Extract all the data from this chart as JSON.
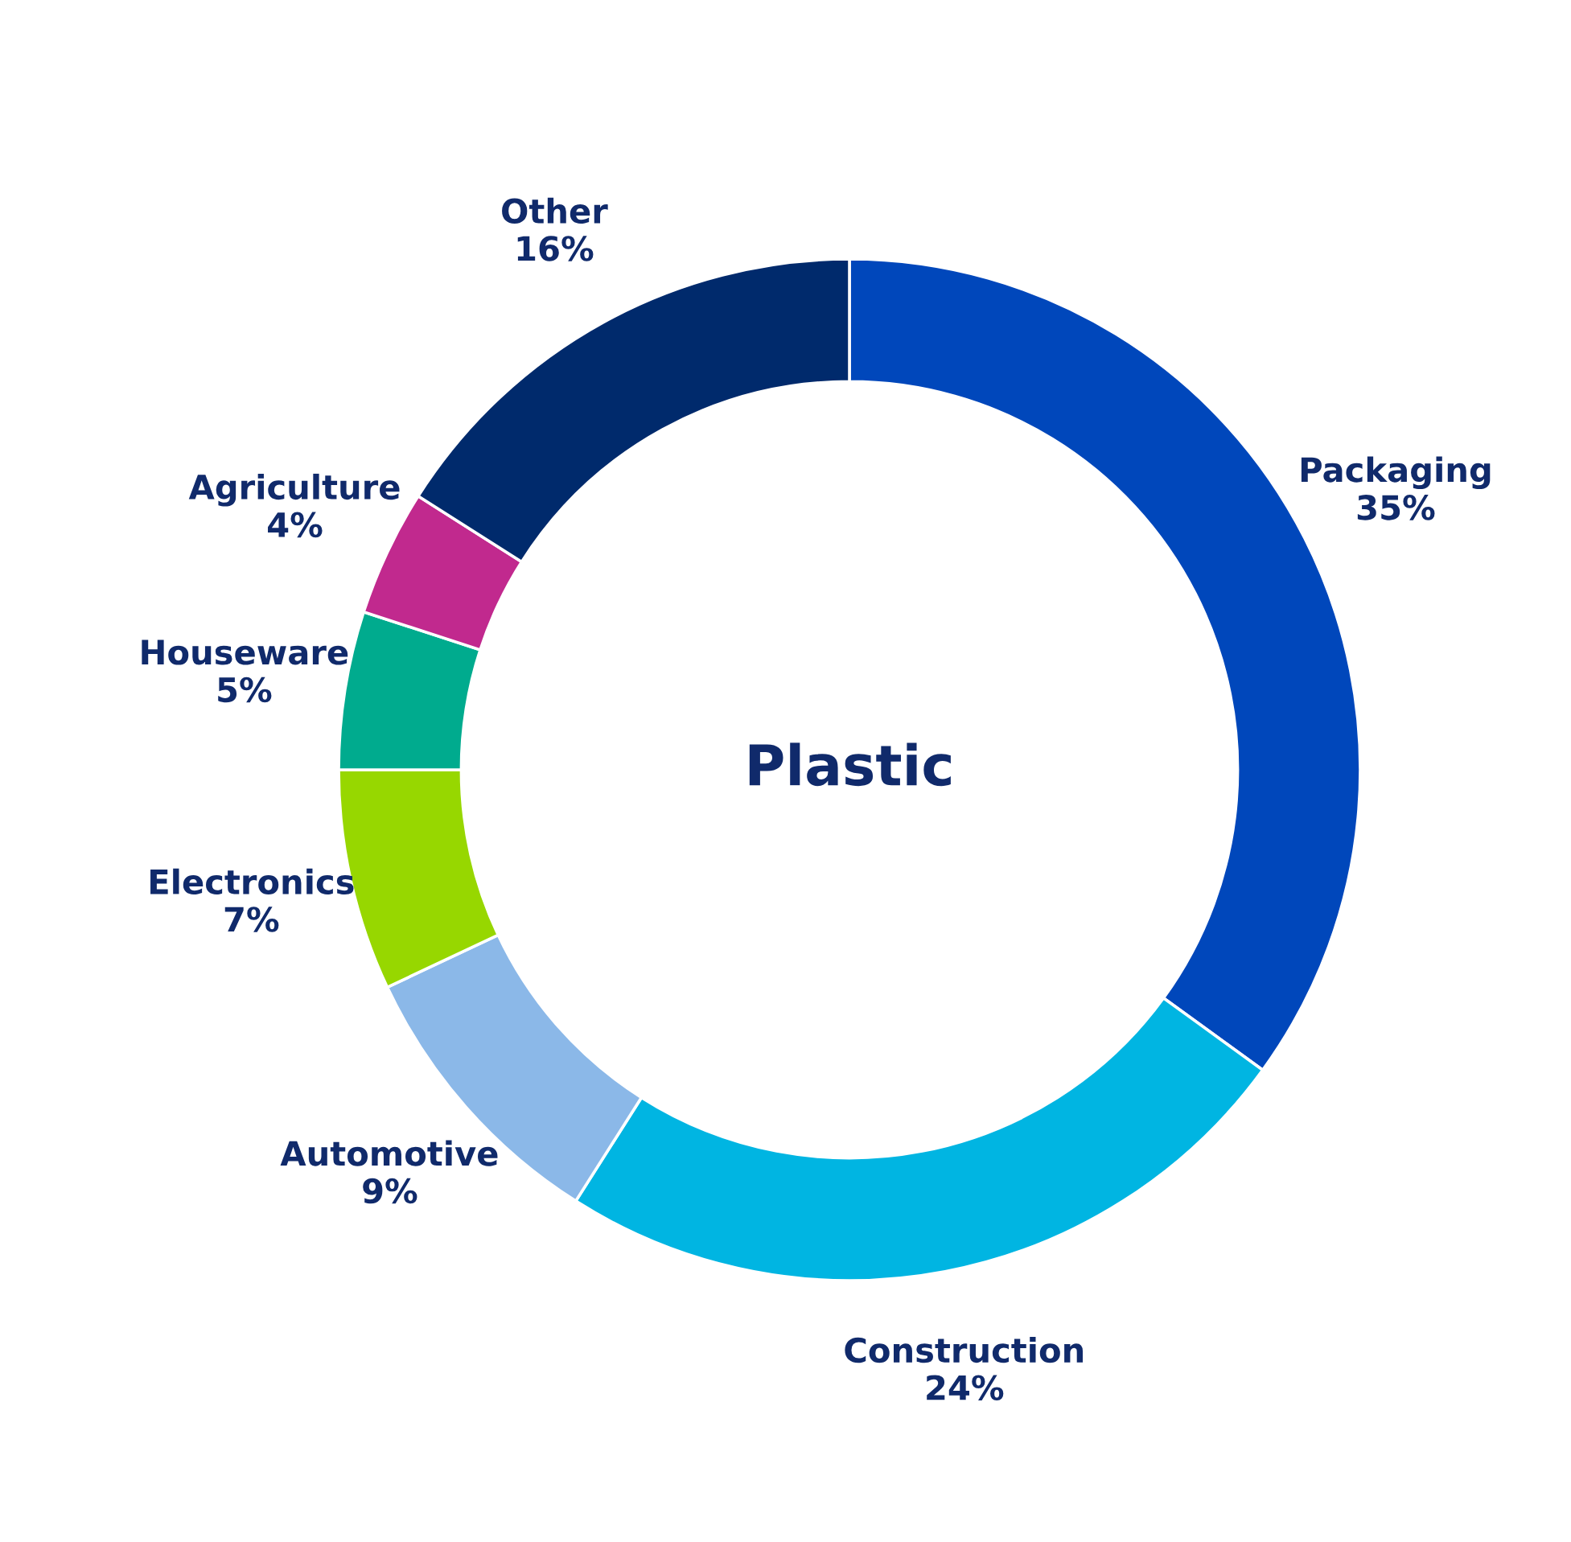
{
  "chart_data": {
    "type": "donut",
    "title": "Plastic",
    "categories": [
      "Packaging",
      "Construction",
      "Automotive",
      "Electronics",
      "Houseware",
      "Agriculture",
      "Other"
    ],
    "values": [
      35,
      24,
      9,
      7,
      5,
      4,
      16
    ],
    "value_labels": [
      "35%",
      "24%",
      "9%",
      "7%",
      "5%",
      "4%",
      "16%"
    ],
    "colors": [
      "#0047bb",
      "#00b5e2",
      "#8bb8e8",
      "#97d700",
      "#00ab8e",
      "#c1298e",
      "#002a6c"
    ],
    "legend": false
  }
}
